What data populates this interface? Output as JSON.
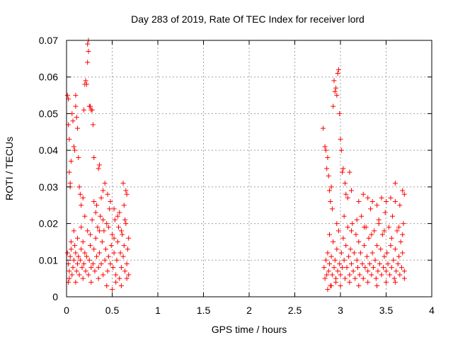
{
  "chart_data": {
    "type": "scatter",
    "title": "Day 283 of 2019, Rate Of TEC Index for receiver lord",
    "xlabel": "GPS time / hours",
    "ylabel": "ROTI / TECUs",
    "xlim": [
      0,
      4
    ],
    "ylim": [
      0,
      0.07
    ],
    "xticks": [
      0,
      0.5,
      1,
      1.5,
      2,
      2.5,
      3,
      3.5,
      4
    ],
    "xtick_labels": [
      "0",
      "0.5",
      "1",
      "1.5",
      "2",
      "2.5",
      "3",
      "3.5",
      "4"
    ],
    "yticks": [
      0,
      0.01,
      0.02,
      0.03,
      0.04,
      0.05,
      0.06,
      0.07
    ],
    "ytick_labels": [
      "0",
      "0.01",
      "0.02",
      "0.03",
      "0.04",
      "0.05",
      "0.06",
      "0.07"
    ],
    "grid": true,
    "marker": "+",
    "color": "#ff0000",
    "series": [
      {
        "name": "ROTI",
        "points": [
          [
            0.01,
            0.055
          ],
          [
            0.02,
            0.054
          ],
          [
            0.02,
            0.047
          ],
          [
            0.03,
            0.043
          ],
          [
            0.03,
            0.034
          ],
          [
            0.04,
            0.031
          ],
          [
            0.04,
            0.03
          ],
          [
            0.05,
            0.037
          ],
          [
            0.06,
            0.05
          ],
          [
            0.07,
            0.048
          ],
          [
            0.08,
            0.041
          ],
          [
            0.09,
            0.04
          ],
          [
            0.1,
            0.055
          ],
          [
            0.1,
            0.052
          ],
          [
            0.11,
            0.049
          ],
          [
            0.12,
            0.046
          ],
          [
            0.13,
            0.038
          ],
          [
            0.14,
            0.03
          ],
          [
            0.15,
            0.028
          ],
          [
            0.16,
            0.025
          ],
          [
            0.18,
            0.027
          ],
          [
            0.19,
            0.051
          ],
          [
            0.2,
            0.058
          ],
          [
            0.21,
            0.059
          ],
          [
            0.22,
            0.058
          ],
          [
            0.23,
            0.064
          ],
          [
            0.23,
            0.069
          ],
          [
            0.24,
            0.07
          ],
          [
            0.24,
            0.067
          ],
          [
            0.25,
            0.052
          ],
          [
            0.26,
            0.052
          ],
          [
            0.27,
            0.051
          ],
          [
            0.28,
            0.051
          ],
          [
            0.29,
            0.047
          ],
          [
            0.3,
            0.038
          ],
          [
            0.35,
            0.035
          ],
          [
            0.36,
            0.036
          ],
          [
            0.4,
            0.029
          ],
          [
            0.42,
            0.031
          ],
          [
            0.45,
            0.028
          ],
          [
            0.62,
            0.031
          ],
          [
            0.65,
            0.029
          ],
          [
            0.66,
            0.028
          ],
          [
            0.3,
            0.026
          ],
          [
            0.33,
            0.025
          ],
          [
            0.38,
            0.027
          ],
          [
            0.48,
            0.026
          ],
          [
            0.52,
            0.024
          ],
          [
            0.58,
            0.023
          ],
          [
            0.63,
            0.025
          ],
          [
            0.01,
            0.012
          ],
          [
            0.02,
            0.009
          ],
          [
            0.03,
            0.007
          ],
          [
            0.03,
            0.005
          ],
          [
            0.04,
            0.011
          ],
          [
            0.05,
            0.013
          ],
          [
            0.06,
            0.006
          ],
          [
            0.07,
            0.008
          ],
          [
            0.08,
            0.01
          ],
          [
            0.09,
            0.014
          ],
          [
            0.1,
            0.012
          ],
          [
            0.11,
            0.007
          ],
          [
            0.12,
            0.009
          ],
          [
            0.13,
            0.011
          ],
          [
            0.14,
            0.006
          ],
          [
            0.15,
            0.01
          ],
          [
            0.16,
            0.013
          ],
          [
            0.17,
            0.008
          ],
          [
            0.18,
            0.015
          ],
          [
            0.19,
            0.009
          ],
          [
            0.2,
            0.012
          ],
          [
            0.21,
            0.007
          ],
          [
            0.22,
            0.011
          ],
          [
            0.23,
            0.018
          ],
          [
            0.24,
            0.006
          ],
          [
            0.25,
            0.01
          ],
          [
            0.26,
            0.014
          ],
          [
            0.27,
            0.008
          ],
          [
            0.28,
            0.021
          ],
          [
            0.29,
            0.009
          ],
          [
            0.3,
            0.013
          ],
          [
            0.31,
            0.007
          ],
          [
            0.32,
            0.016
          ],
          [
            0.33,
            0.011
          ],
          [
            0.34,
            0.019
          ],
          [
            0.35,
            0.008
          ],
          [
            0.36,
            0.012
          ],
          [
            0.37,
            0.022
          ],
          [
            0.38,
            0.009
          ],
          [
            0.39,
            0.015
          ],
          [
            0.4,
            0.006
          ],
          [
            0.41,
            0.018
          ],
          [
            0.42,
            0.01
          ],
          [
            0.43,
            0.013
          ],
          [
            0.44,
            0.02
          ],
          [
            0.45,
            0.007
          ],
          [
            0.46,
            0.011
          ],
          [
            0.47,
            0.024
          ],
          [
            0.48,
            0.009
          ],
          [
            0.49,
            0.014
          ],
          [
            0.5,
            0.002
          ],
          [
            0.5,
            0.017
          ],
          [
            0.51,
            0.008
          ],
          [
            0.52,
            0.012
          ],
          [
            0.53,
            0.021
          ],
          [
            0.54,
            0.006
          ],
          [
            0.55,
            0.01
          ],
          [
            0.56,
            0.015
          ],
          [
            0.57,
            0.019
          ],
          [
            0.58,
            0.005
          ],
          [
            0.59,
            0.012
          ],
          [
            0.6,
            0.008
          ],
          [
            0.61,
            0.017
          ],
          [
            0.62,
            0.011
          ],
          [
            0.63,
            0.014
          ],
          [
            0.64,
            0.007
          ],
          [
            0.65,
            0.02
          ],
          [
            0.66,
            0.009
          ],
          [
            0.67,
            0.013
          ],
          [
            0.68,
            0.006
          ],
          [
            0.05,
            0.015
          ],
          [
            0.08,
            0.018
          ],
          [
            0.12,
            0.016
          ],
          [
            0.16,
            0.019
          ],
          [
            0.2,
            0.022
          ],
          [
            0.26,
            0.017
          ],
          [
            0.32,
            0.023
          ],
          [
            0.36,
            0.018
          ],
          [
            0.4,
            0.021
          ],
          [
            0.46,
            0.019
          ],
          [
            0.52,
            0.016
          ],
          [
            0.56,
            0.022
          ],
          [
            0.6,
            0.018
          ],
          [
            0.64,
            0.021
          ],
          [
            0.68,
            0.016
          ],
          [
            0.02,
            0.004
          ],
          [
            0.1,
            0.004
          ],
          [
            0.18,
            0.005
          ],
          [
            0.27,
            0.004
          ],
          [
            0.35,
            0.005
          ],
          [
            0.44,
            0.003
          ],
          [
            0.54,
            0.004
          ],
          [
            0.6,
            0.003
          ],
          [
            0.66,
            0.005
          ],
          [
            2.81,
            0.046
          ],
          [
            2.83,
            0.041
          ],
          [
            2.84,
            0.04
          ],
          [
            2.85,
            0.035
          ],
          [
            2.86,
            0.038
          ],
          [
            2.87,
            0.033
          ],
          [
            2.88,
            0.029
          ],
          [
            2.89,
            0.026
          ],
          [
            2.9,
            0.03
          ],
          [
            2.91,
            0.024
          ],
          [
            2.92,
            0.052
          ],
          [
            2.93,
            0.059
          ],
          [
            2.94,
            0.056
          ],
          [
            2.95,
            0.057
          ],
          [
            2.96,
            0.055
          ],
          [
            2.97,
            0.061
          ],
          [
            2.98,
            0.062
          ],
          [
            2.99,
            0.05
          ],
          [
            3.0,
            0.043
          ],
          [
            3.01,
            0.04
          ],
          [
            3.02,
            0.034
          ],
          [
            3.03,
            0.035
          ],
          [
            3.05,
            0.031
          ],
          [
            3.06,
            0.028
          ],
          [
            3.08,
            0.027
          ],
          [
            3.1,
            0.034
          ],
          [
            3.12,
            0.029
          ],
          [
            3.2,
            0.026
          ],
          [
            3.25,
            0.028
          ],
          [
            3.3,
            0.027
          ],
          [
            3.35,
            0.026
          ],
          [
            3.4,
            0.025
          ],
          [
            3.45,
            0.027
          ],
          [
            3.5,
            0.026
          ],
          [
            3.55,
            0.027
          ],
          [
            3.6,
            0.026
          ],
          [
            3.65,
            0.025
          ],
          [
            3.68,
            0.029
          ],
          [
            3.7,
            0.028
          ],
          [
            3.6,
            0.031
          ],
          [
            2.82,
            0.008
          ],
          [
            2.83,
            0.005
          ],
          [
            2.84,
            0.01
          ],
          [
            2.85,
            0.006
          ],
          [
            2.86,
            0.012
          ],
          [
            2.87,
            0.007
          ],
          [
            2.88,
            0.009
          ],
          [
            2.89,
            0.003
          ],
          [
            2.9,
            0.011
          ],
          [
            2.91,
            0.006
          ],
          [
            2.92,
            0.015
          ],
          [
            2.93,
            0.008
          ],
          [
            2.94,
            0.01
          ],
          [
            2.95,
            0.005
          ],
          [
            2.96,
            0.013
          ],
          [
            2.97,
            0.007
          ],
          [
            2.98,
            0.018
          ],
          [
            2.99,
            0.009
          ],
          [
            3.0,
            0.006
          ],
          [
            3.01,
            0.012
          ],
          [
            3.02,
            0.008
          ],
          [
            3.03,
            0.016
          ],
          [
            3.04,
            0.01
          ],
          [
            3.05,
            0.005
          ],
          [
            3.06,
            0.014
          ],
          [
            3.07,
            0.008
          ],
          [
            3.08,
            0.019
          ],
          [
            3.09,
            0.011
          ],
          [
            3.1,
            0.006
          ],
          [
            3.11,
            0.013
          ],
          [
            3.12,
            0.009
          ],
          [
            3.13,
            0.02
          ],
          [
            3.14,
            0.007
          ],
          [
            3.15,
            0.012
          ],
          [
            3.16,
            0.005
          ],
          [
            3.17,
            0.017
          ],
          [
            3.18,
            0.01
          ],
          [
            3.19,
            0.008
          ],
          [
            3.2,
            0.015
          ],
          [
            3.21,
            0.006
          ],
          [
            3.22,
            0.012
          ],
          [
            3.23,
            0.022
          ],
          [
            3.24,
            0.009
          ],
          [
            3.25,
            0.005
          ],
          [
            3.26,
            0.014
          ],
          [
            3.27,
            0.008
          ],
          [
            3.28,
            0.019
          ],
          [
            3.29,
            0.011
          ],
          [
            3.3,
            0.007
          ],
          [
            3.31,
            0.016
          ],
          [
            3.32,
            0.009
          ],
          [
            3.33,
            0.024
          ],
          [
            3.34,
            0.006
          ],
          [
            3.35,
            0.012
          ],
          [
            3.36,
            0.008
          ],
          [
            3.37,
            0.018
          ],
          [
            3.38,
            0.01
          ],
          [
            3.39,
            0.005
          ],
          [
            3.4,
            0.014
          ],
          [
            3.41,
            0.007
          ],
          [
            3.42,
            0.021
          ],
          [
            3.43,
            0.009
          ],
          [
            3.44,
            0.013
          ],
          [
            3.45,
            0.006
          ],
          [
            3.46,
            0.017
          ],
          [
            3.47,
            0.008
          ],
          [
            3.48,
            0.011
          ],
          [
            3.49,
            0.023
          ],
          [
            3.5,
            0.007
          ],
          [
            3.51,
            0.012
          ],
          [
            3.52,
            0.009
          ],
          [
            3.53,
            0.019
          ],
          [
            3.54,
            0.006
          ],
          [
            3.55,
            0.014
          ],
          [
            3.56,
            0.008
          ],
          [
            3.57,
            0.022
          ],
          [
            3.58,
            0.01
          ],
          [
            3.59,
            0.005
          ],
          [
            3.6,
            0.013
          ],
          [
            3.61,
            0.007
          ],
          [
            3.62,
            0.018
          ],
          [
            3.63,
            0.009
          ],
          [
            3.64,
            0.011
          ],
          [
            3.65,
            0.006
          ],
          [
            3.66,
            0.015
          ],
          [
            3.67,
            0.008
          ],
          [
            3.68,
            0.012
          ],
          [
            3.69,
            0.02
          ],
          [
            3.7,
            0.007
          ],
          [
            3.7,
            0.005
          ],
          [
            2.86,
            0.002
          ],
          [
            2.9,
            0.003
          ],
          [
            2.95,
            0.004
          ],
          [
            3.0,
            0.003
          ],
          [
            3.1,
            0.004
          ],
          [
            3.2,
            0.003
          ],
          [
            3.3,
            0.004
          ],
          [
            3.4,
            0.003
          ],
          [
            3.5,
            0.004
          ],
          [
            3.6,
            0.004
          ],
          [
            2.88,
            0.017
          ],
          [
            2.96,
            0.02
          ],
          [
            3.04,
            0.022
          ],
          [
            3.12,
            0.018
          ],
          [
            3.18,
            0.021
          ],
          [
            3.26,
            0.019
          ],
          [
            3.34,
            0.017
          ],
          [
            3.42,
            0.02
          ],
          [
            3.48,
            0.018
          ],
          [
            3.56,
            0.016
          ],
          [
            3.64,
            0.019
          ],
          [
            3.68,
            0.017
          ]
        ]
      }
    ]
  }
}
